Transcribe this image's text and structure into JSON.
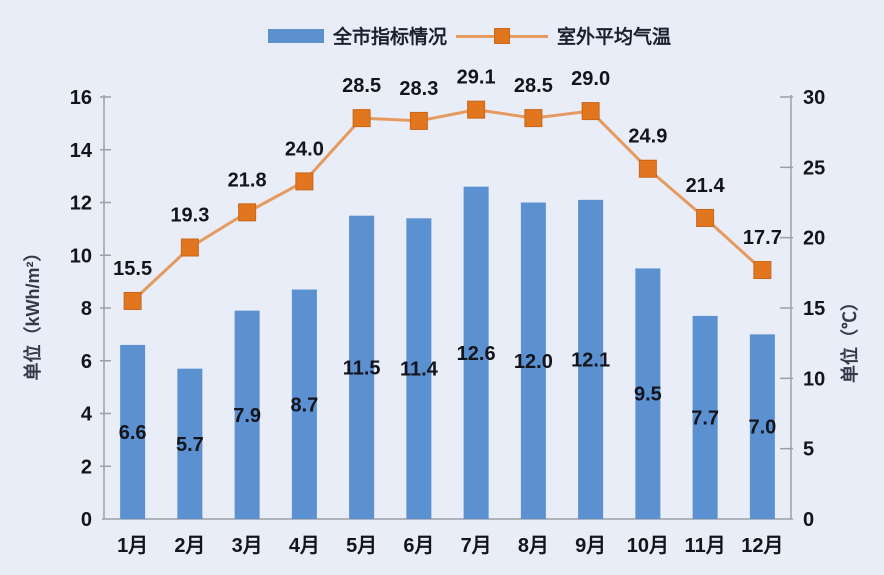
{
  "chart_data": {
    "type": "bar+line combo",
    "categories": [
      "1月",
      "2月",
      "3月",
      "4月",
      "5月",
      "6月",
      "7月",
      "8月",
      "9月",
      "10月",
      "11月",
      "12月"
    ],
    "series": [
      {
        "name": "全市指标情况",
        "type": "bar",
        "axis": "left",
        "color": "#5b91d0",
        "values": [
          6.6,
          5.7,
          7.9,
          8.7,
          11.5,
          11.4,
          12.6,
          12.0,
          12.1,
          9.5,
          7.7,
          7.0
        ]
      },
      {
        "name": "室外平均气温",
        "type": "line",
        "axis": "right",
        "line_color": "#e59a60",
        "marker_color": "#e2761f",
        "marker_border": "#c9661a",
        "values": [
          15.5,
          19.3,
          21.8,
          24.0,
          28.5,
          28.3,
          29.1,
          28.5,
          29.0,
          24.9,
          21.4,
          17.7
        ]
      }
    ],
    "left_axis": {
      "title": "单位（kWh/m²）",
      "min": 0,
      "max": 16,
      "ticks": [
        0,
        2,
        4,
        6,
        8,
        10,
        12,
        14,
        16
      ]
    },
    "right_axis": {
      "title": "单位（℃）",
      "min": 0,
      "max": 30,
      "ticks": [
        0,
        5,
        10,
        15,
        20,
        25,
        30
      ]
    },
    "legend_position": "top-center",
    "grid": false,
    "data_labels": true,
    "background": "#e9edf7",
    "text_color": "#14151c",
    "axis_color": "#9aa0a8"
  },
  "legend": {
    "bar_label": "全市指标情况",
    "line_label": "室外平均气温"
  }
}
